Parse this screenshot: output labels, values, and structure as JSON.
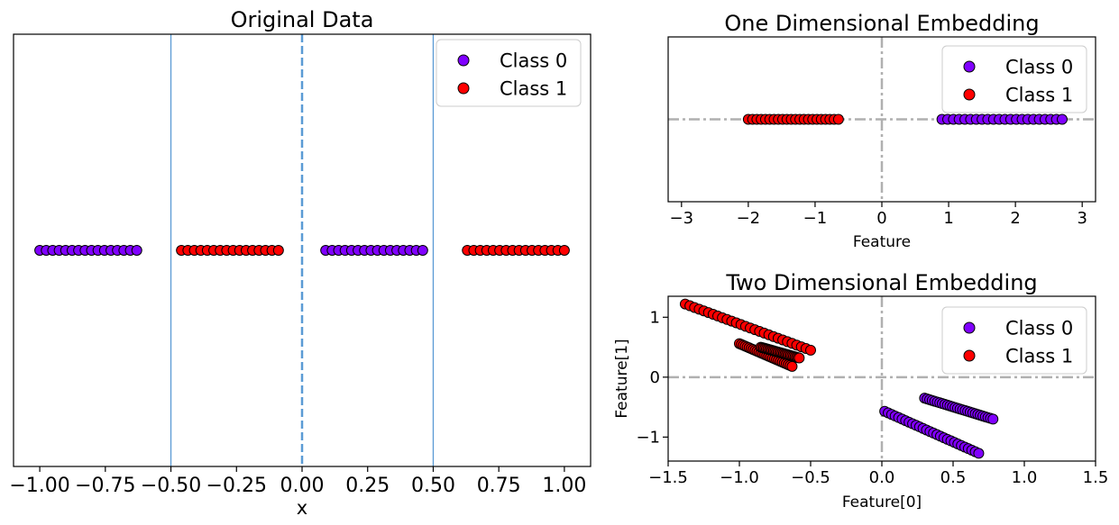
{
  "chart_data": [
    {
      "type": "scatter",
      "title": "Original Data",
      "xlabel": "x",
      "ylabel": "",
      "xlim": [
        -1.1,
        1.1
      ],
      "ylim": [
        -1,
        1
      ],
      "xticks": [
        -1.0,
        -0.75,
        -0.5,
        -0.25,
        0.0,
        0.25,
        0.5,
        0.75,
        1.0
      ],
      "xtick_labels": [
        "−1.00",
        "−0.75",
        "−0.50",
        "−0.25",
        "0.00",
        "0.25",
        "0.50",
        "0.75",
        "1.00"
      ],
      "yticks": [],
      "vlines": [
        {
          "x": -0.5,
          "style": "solid"
        },
        {
          "x": 0.0,
          "style": "dashed"
        },
        {
          "x": 0.5,
          "style": "solid"
        }
      ],
      "legend": {
        "position": "top-right",
        "entries": [
          "Class 0",
          "Class 1"
        ]
      },
      "series": [
        {
          "name": "Class 0",
          "color": "#8000ff",
          "x_ranges": [
            [
              -1.0,
              -0.63
            ],
            [
              0.09,
              0.46
            ]
          ],
          "y": 0
        },
        {
          "name": "Class 1",
          "color": "#ff0000",
          "x_ranges": [
            [
              -0.46,
              -0.09
            ],
            [
              0.63,
              1.0
            ]
          ],
          "y": 0
        }
      ]
    },
    {
      "type": "scatter",
      "title": "One Dimensional Embedding",
      "xlabel": "Feature",
      "ylabel": "",
      "xlim": [
        -3.2,
        3.2
      ],
      "ylim": [
        -1,
        1
      ],
      "xticks": [
        -3,
        -2,
        -1,
        0,
        1,
        2,
        3
      ],
      "xtick_labels": [
        "−3",
        "−2",
        "−1",
        "0",
        "1",
        "2",
        "3"
      ],
      "yticks": [],
      "reference_lines": {
        "x": 0,
        "y": 0,
        "color": "#b0b0b0",
        "style": "dash-dot"
      },
      "legend": {
        "position": "top-right",
        "entries": [
          "Class 0",
          "Class 1"
        ]
      },
      "series": [
        {
          "name": "Class 0",
          "color": "#8000ff",
          "x_range": [
            0.9,
            2.7
          ],
          "y": 0
        },
        {
          "name": "Class 1",
          "color": "#ff0000",
          "x_range": [
            -2.0,
            -0.65
          ],
          "y": 0
        }
      ]
    },
    {
      "type": "scatter",
      "title": "Two Dimensional Embedding",
      "xlabel": "Feature[0]",
      "ylabel": "Feature[1]",
      "xlim": [
        -1.5,
        1.5
      ],
      "ylim": [
        -1.4,
        1.35
      ],
      "xticks": [
        -1.5,
        -1.0,
        -0.5,
        0.0,
        0.5,
        1.0,
        1.5
      ],
      "xtick_labels": [
        "−1.5",
        "−1.0",
        "−0.5",
        "0.0",
        "0.5",
        "1.0",
        "1.5"
      ],
      "yticks": [
        -1,
        0,
        1
      ],
      "ytick_labels": [
        "−1",
        "0",
        "1"
      ],
      "reference_lines": {
        "x": 0,
        "y": 0,
        "color": "#b0b0b0",
        "style": "dash-dot"
      },
      "legend": {
        "position": "top-right",
        "entries": [
          "Class 0",
          "Class 1"
        ]
      },
      "series": [
        {
          "name": "Class 0",
          "color": "#8000ff",
          "segments": [
            {
              "from": [
                0.02,
                -0.57
              ],
              "to": [
                0.68,
                -1.27
              ]
            },
            {
              "from": [
                0.3,
                -0.35
              ],
              "to": [
                0.78,
                -0.7
              ]
            }
          ]
        },
        {
          "name": "Class 1",
          "color": "#ff0000",
          "segments": [
            {
              "from": [
                -1.38,
                1.22
              ],
              "to": [
                -0.5,
                0.45
              ]
            },
            {
              "from": [
                -1.0,
                0.56
              ],
              "to": [
                -0.63,
                0.18
              ]
            },
            {
              "from": [
                -0.85,
                0.5
              ],
              "to": [
                -0.58,
                0.32
              ]
            }
          ]
        }
      ]
    }
  ]
}
